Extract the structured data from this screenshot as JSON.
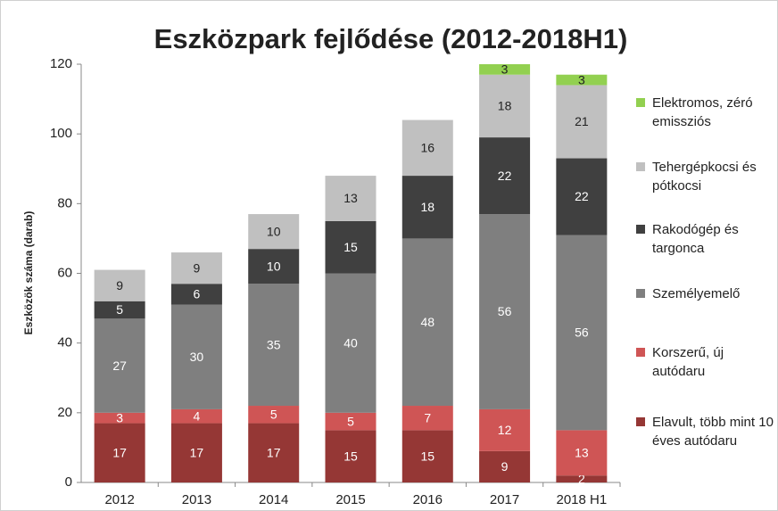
{
  "chart_data": {
    "type": "stacked_bar",
    "title": "Eszközpark fejlődése (2012-2018H1)",
    "y_label": "Eszközök száma (darab)",
    "categories": [
      "2012",
      "2013",
      "2014",
      "2015",
      "2016",
      "2017",
      "2018 H1"
    ],
    "series": [
      {
        "name": "Elavult, több mint 10 éves autódaru",
        "color": "#953735",
        "values": [
          17,
          17,
          17,
          15,
          15,
          9,
          2
        ]
      },
      {
        "name": "Korszerű, új autódaru",
        "color": "#cf5555",
        "values": [
          3,
          4,
          5,
          5,
          7,
          12,
          13
        ]
      },
      {
        "name": "Személyemelő",
        "color": "#7f7f7f",
        "values": [
          27,
          30,
          35,
          40,
          48,
          56,
          56
        ]
      },
      {
        "name": "Rakodógép és targonca",
        "color": "#404040",
        "values": [
          5,
          6,
          10,
          15,
          18,
          22,
          22
        ]
      },
      {
        "name": "Tehergépkocsi és pótkocsi",
        "color": "#c0c0c0",
        "values": [
          9,
          9,
          10,
          13,
          16,
          18,
          21
        ]
      },
      {
        "name": "Elektromos, zéró emissziós",
        "color": "#92d050",
        "values": [
          null,
          null,
          null,
          null,
          null,
          3,
          3
        ]
      }
    ],
    "ylim": [
      0,
      120
    ],
    "yticks": [
      0,
      20,
      40,
      60,
      80,
      100,
      120
    ],
    "grid": false,
    "legend": "right"
  }
}
